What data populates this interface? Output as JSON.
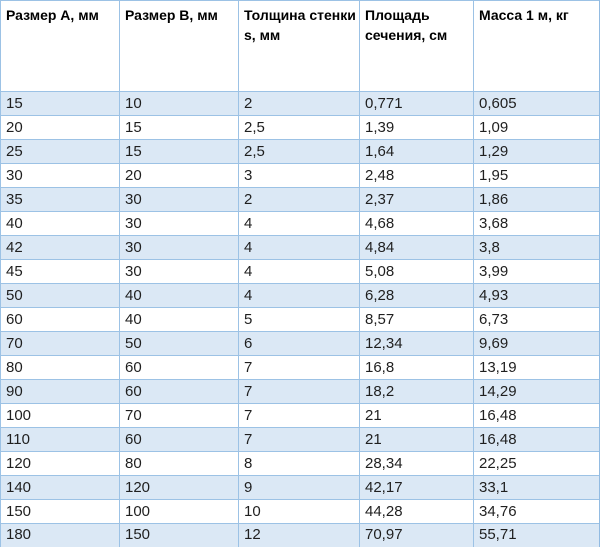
{
  "table": {
    "name": "pipe-profile-dimensions-table",
    "columns": [
      "Размер A, мм",
      "Размер B, мм",
      "Толщина стенки s, мм",
      "Площадь сечения, см",
      "Масса 1 м, кг"
    ],
    "rows": [
      [
        "15",
        "10",
        "2",
        "0,771",
        "0,605"
      ],
      [
        "20",
        "15",
        "2,5",
        "1,39",
        "1,09"
      ],
      [
        "25",
        "15",
        "2,5",
        "1,64",
        "1,29"
      ],
      [
        "30",
        "20",
        "3",
        "2,48",
        "1,95"
      ],
      [
        "35",
        "30",
        "2",
        "2,37",
        "1,86"
      ],
      [
        "40",
        "30",
        "4",
        "4,68",
        "3,68"
      ],
      [
        "42",
        "30",
        "4",
        "4,84",
        "3,8"
      ],
      [
        "45",
        "30",
        "4",
        "5,08",
        "3,99"
      ],
      [
        "50",
        "40",
        "4",
        "6,28",
        "4,93"
      ],
      [
        "60",
        "40",
        "5",
        "8,57",
        "6,73"
      ],
      [
        "70",
        "50",
        "6",
        "12,34",
        "9,69"
      ],
      [
        "80",
        "60",
        "7",
        "16,8",
        "13,19"
      ],
      [
        "90",
        "60",
        "7",
        "18,2",
        "14,29"
      ],
      [
        "100",
        "70",
        "7",
        "21",
        "16,48"
      ],
      [
        "110",
        "60",
        "7",
        "21",
        "16,48"
      ],
      [
        "120",
        "80",
        "8",
        "28,34",
        "22,25"
      ],
      [
        "140",
        "120",
        "9",
        "42,17",
        "33,1"
      ],
      [
        "150",
        "100",
        "10",
        "44,28",
        "34,76"
      ],
      [
        "180",
        "150",
        "12",
        "70,97",
        "55,71"
      ]
    ],
    "colors": {
      "band_fill": "#dbe8f5",
      "border": "#9cc2e5",
      "outer_border": "#8db6de",
      "header_text": "#000000",
      "cell_text": "#1f1f1f",
      "header_background": "#ffffff",
      "plain_row_background": "#ffffff"
    }
  },
  "chart_data": {
    "type": "table",
    "title": "",
    "columns": [
      "Размер A, мм",
      "Размер B, мм",
      "Толщина стенки s, мм",
      "Площадь сечения, см",
      "Масса 1 м, кг"
    ],
    "rows": [
      [
        "15",
        "10",
        "2",
        "0,771",
        "0,605"
      ],
      [
        "20",
        "15",
        "2,5",
        "1,39",
        "1,09"
      ],
      [
        "25",
        "15",
        "2,5",
        "1,64",
        "1,29"
      ],
      [
        "30",
        "20",
        "3",
        "2,48",
        "1,95"
      ],
      [
        "35",
        "30",
        "2",
        "2,37",
        "1,86"
      ],
      [
        "40",
        "30",
        "4",
        "4,68",
        "3,68"
      ],
      [
        "42",
        "30",
        "4",
        "4,84",
        "3,8"
      ],
      [
        "45",
        "30",
        "4",
        "5,08",
        "3,99"
      ],
      [
        "50",
        "40",
        "4",
        "6,28",
        "4,93"
      ],
      [
        "60",
        "40",
        "5",
        "8,57",
        "6,73"
      ],
      [
        "70",
        "50",
        "6",
        "12,34",
        "9,69"
      ],
      [
        "80",
        "60",
        "7",
        "16,8",
        "13,19"
      ],
      [
        "90",
        "60",
        "7",
        "18,2",
        "14,29"
      ],
      [
        "100",
        "70",
        "7",
        "21",
        "16,48"
      ],
      [
        "110",
        "60",
        "7",
        "21",
        "16,48"
      ],
      [
        "120",
        "80",
        "8",
        "28,34",
        "22,25"
      ],
      [
        "140",
        "120",
        "9",
        "42,17",
        "33,1"
      ],
      [
        "150",
        "100",
        "10",
        "44,28",
        "34,76"
      ],
      [
        "180",
        "150",
        "12",
        "70,97",
        "55,71"
      ]
    ]
  }
}
